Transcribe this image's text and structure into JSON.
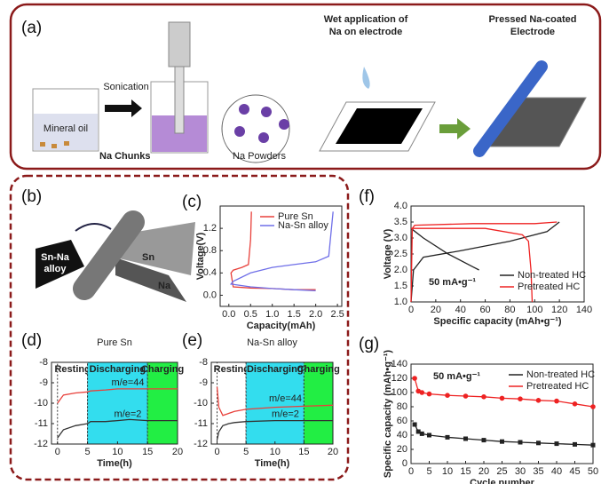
{
  "panels": {
    "a": {
      "label": "(a)",
      "mineral_oil": "Mineral oil",
      "na_chunks": "Na Chunks",
      "sonication": "Sonication",
      "na_powders": "Na Powders",
      "wet_application": [
        "Wet application of",
        "Na on electrode"
      ],
      "pressed": [
        "Pressed Na-coated",
        "Electrode"
      ]
    },
    "b": {
      "label": "(b)",
      "sn_na_alloy": [
        "Sn-Na",
        "alloy"
      ],
      "sn": "Sn",
      "na": "Na"
    }
  },
  "chart_data": [
    {
      "type": "line",
      "label": "(c)",
      "xlabel": "Capacity(mAh)",
      "ylabel": "Voltage(V)",
      "xlim": [
        -0.2,
        2.6
      ],
      "ylim": [
        -0.2,
        1.6
      ],
      "xticks": [
        {
          "value": 0,
          "label": "0.0"
        },
        0.5,
        {
          "value": 1,
          "label": "1.0"
        },
        1.5,
        {
          "value": 2,
          "label": "2.0"
        },
        2.5
      ],
      "yticks": [
        {
          "value": 0,
          "label": "0.0"
        },
        0.4,
        0.8,
        1.2
      ],
      "legend": "upper center",
      "series": [
        {
          "name": "Pure Sn",
          "color": "#e8403a",
          "x": [
            2.0,
            1.5,
            1.0,
            0.5,
            0.1,
            0.05,
            0.1,
            0.3,
            0.45,
            0.5,
            0.52
          ],
          "values": [
            0.1,
            0.1,
            0.12,
            0.13,
            0.15,
            0.4,
            0.45,
            0.5,
            0.55,
            1.0,
            1.5
          ]
        },
        {
          "name": "Na-Sn alloy",
          "color": "#6f6fe8",
          "x": [
            2.0,
            1.5,
            1.0,
            0.5,
            0.05,
            0.1,
            0.5,
            1.0,
            1.5,
            2.0,
            2.3,
            2.4
          ],
          "values": [
            0.08,
            0.1,
            0.12,
            0.15,
            0.2,
            0.25,
            0.4,
            0.5,
            0.55,
            0.6,
            0.7,
            1.5
          ]
        }
      ]
    },
    {
      "type": "line",
      "label": "(d)",
      "title": "Pure Sn",
      "xlabel": "Time(h)",
      "xlim": [
        -1,
        20
      ],
      "ylim": [
        -12,
        -8
      ],
      "xticks": [
        0,
        5,
        10,
        15,
        20
      ],
      "yticks": [
        -8,
        -9,
        -10,
        -11,
        -12
      ],
      "regions": [
        {
          "label": "Resting",
          "range": [
            0,
            5
          ],
          "color": "#ffffff"
        },
        {
          "label": "Discharging",
          "range": [
            5,
            15
          ],
          "color": "#33ddee"
        },
        {
          "label": "Charging",
          "range": [
            15,
            20
          ],
          "color": "#22ee44"
        }
      ],
      "series": [
        {
          "name": "m/e=44",
          "color": "#e8403a",
          "x": [
            0,
            0.5,
            1,
            3,
            5,
            5.5,
            8,
            10,
            12,
            15,
            17,
            20
          ],
          "values": [
            -10,
            -9.8,
            -9.6,
            -9.5,
            -9.45,
            -9.4,
            -9.35,
            -9.3,
            -9.3,
            -9.3,
            -9.3,
            -9.3
          ]
        },
        {
          "name": "m/e=2",
          "color": "#333333",
          "x": [
            0,
            0.5,
            1,
            3,
            5,
            5.5,
            8,
            10,
            12,
            15,
            17,
            20
          ],
          "values": [
            -11.7,
            -11.5,
            -11.3,
            -11.1,
            -11,
            -10.9,
            -10.9,
            -10.85,
            -10.8,
            -10.85,
            -10.85,
            -10.85
          ]
        }
      ]
    },
    {
      "type": "line",
      "label": "(e)",
      "title": "Na-Sn alloy",
      "xlabel": "Time(h)",
      "xlim": [
        -1,
        20
      ],
      "ylim": [
        -12,
        -8
      ],
      "xticks": [
        0,
        5,
        10,
        15,
        20
      ],
      "yticks": [
        -8,
        -9,
        -10,
        -11,
        -12
      ],
      "regions": [
        {
          "label": "Resting",
          "range": [
            0,
            5
          ],
          "color": "#ffffff"
        },
        {
          "label": "Discharging",
          "range": [
            5,
            15
          ],
          "color": "#33ddee"
        },
        {
          "label": "Charging",
          "range": [
            15,
            20
          ],
          "color": "#22ee44"
        }
      ],
      "series": [
        {
          "name": "m/e=44",
          "color": "#e8403a",
          "x": [
            0,
            0.3,
            1,
            2,
            3,
            5,
            10,
            15,
            20
          ],
          "values": [
            -9.2,
            -10.2,
            -10.6,
            -10.5,
            -10.4,
            -10.3,
            -10.2,
            -10.15,
            -10.1
          ]
        },
        {
          "name": "m/e=2",
          "color": "#333333",
          "x": [
            0,
            0.3,
            1,
            2,
            3,
            5,
            10,
            15,
            20
          ],
          "values": [
            -11.8,
            -11.4,
            -11.1,
            -11.0,
            -10.95,
            -10.9,
            -10.85,
            -10.85,
            -10.85
          ]
        }
      ]
    },
    {
      "type": "line",
      "label": "(f)",
      "xlabel": "Specific capacity (mAh•g⁻¹)",
      "ylabel": "Voltage (V)",
      "annotation": "50 mA•g⁻¹",
      "xlim": [
        0,
        140
      ],
      "ylim": [
        1.0,
        4.0
      ],
      "xticks": [
        0,
        20,
        40,
        60,
        80,
        100,
        120,
        140
      ],
      "yticks": [
        {
          "value": 1,
          "label": "1.0"
        },
        1.5,
        {
          "value": 2,
          "label": "2.0"
        },
        2.5,
        {
          "value": 3,
          "label": "3.0"
        },
        3.5,
        {
          "value": 4,
          "label": "4.0"
        }
      ],
      "legend": "lower right",
      "series": [
        {
          "name": "Non-treated HC",
          "color": "#222222",
          "x": [
            0,
            10,
            30,
            50,
            55,
            null,
            0,
            2,
            10,
            40,
            80,
            110,
            120
          ],
          "values": [
            3.3,
            3.0,
            2.5,
            2.1,
            2.0,
            null,
            1.0,
            2.0,
            2.4,
            2.6,
            2.9,
            3.2,
            3.5
          ]
        },
        {
          "name": "Pretreated HC",
          "color": "#ee2222",
          "x": [
            0,
            20,
            60,
            90,
            95,
            97,
            98,
            null,
            0,
            1,
            3,
            50,
            100,
            118
          ],
          "values": [
            3.3,
            3.3,
            3.3,
            3.1,
            2.9,
            2.0,
            1.0,
            null,
            1.0,
            3.3,
            3.4,
            3.45,
            3.45,
            3.5
          ]
        }
      ]
    },
    {
      "type": "line",
      "label": "(g)",
      "xlabel": "Cycle number",
      "ylabel": "Specific capacity (mAh•g⁻¹)",
      "annotation": "50 mA•g⁻¹",
      "xlim": [
        0,
        50
      ],
      "ylim": [
        0,
        140
      ],
      "xticks": [
        0,
        5,
        10,
        15,
        20,
        25,
        30,
        35,
        40,
        45,
        50
      ],
      "yticks": [
        0,
        20,
        40,
        60,
        80,
        100,
        120,
        140
      ],
      "legend": "upper right",
      "markers": true,
      "series": [
        {
          "name": "Non-treated HC",
          "color": "#222222",
          "x": [
            1,
            2,
            3,
            5,
            10,
            15,
            20,
            25,
            30,
            35,
            40,
            45,
            50
          ],
          "values": [
            55,
            45,
            42,
            40,
            37,
            35,
            33,
            31,
            30,
            29,
            28,
            27,
            26
          ]
        },
        {
          "name": "Pretreated HC",
          "color": "#ee2222",
          "x": [
            1,
            2,
            3,
            5,
            10,
            15,
            20,
            25,
            30,
            35,
            40,
            45,
            50
          ],
          "values": [
            120,
            102,
            100,
            98,
            96,
            95,
            94,
            92,
            91,
            89,
            88,
            84,
            80
          ]
        }
      ]
    }
  ]
}
